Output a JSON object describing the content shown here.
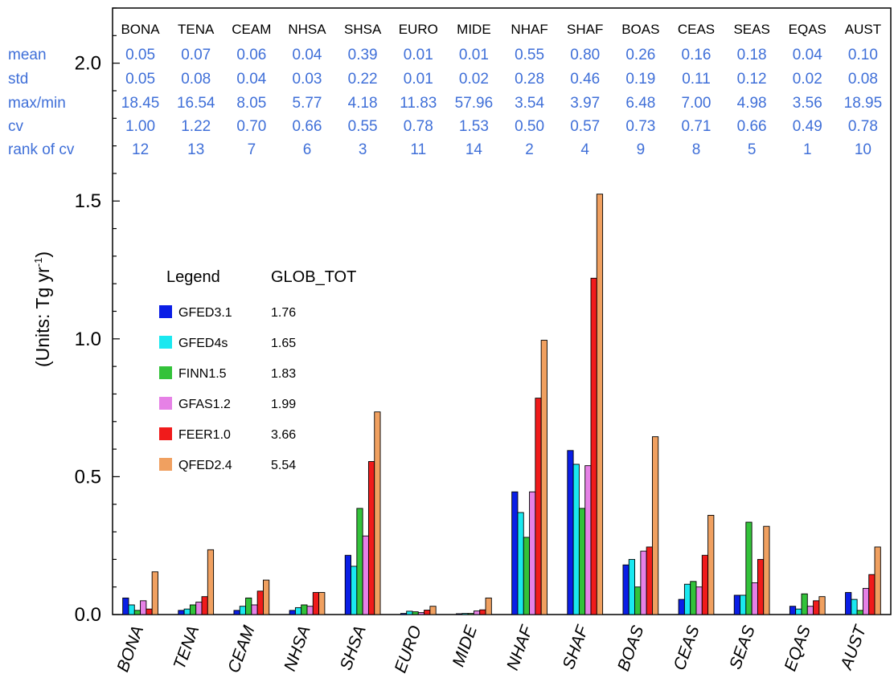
{
  "chart_data": {
    "type": "bar",
    "ylabel": "(Units: Tg yr",
    "ylabel_sup": "-1",
    "ylabel_close": ")",
    "ylim": [
      0,
      2.2
    ],
    "yticks": [
      "0.0",
      "0.5",
      "1.0",
      "1.5",
      "2.0"
    ],
    "grid": false,
    "categories": [
      "BONA",
      "TENA",
      "CEAM",
      "NHSA",
      "SHSA",
      "EURO",
      "MIDE",
      "NHAF",
      "SHAF",
      "BOAS",
      "CEAS",
      "SEAS",
      "EQAS",
      "AUST"
    ],
    "series": [
      {
        "name": "GFED3.1",
        "color": "#0a1ee6",
        "values": [
          0.06,
          0.015,
          0.015,
          0.015,
          0.215,
          0.004,
          0.003,
          0.445,
          0.595,
          0.18,
          0.055,
          0.07,
          0.03,
          0.08
        ]
      },
      {
        "name": "GFED4s",
        "color": "#1ae8f0",
        "values": [
          0.035,
          0.02,
          0.03,
          0.025,
          0.175,
          0.012,
          0.004,
          0.37,
          0.545,
          0.2,
          0.11,
          0.07,
          0.02,
          0.055
        ]
      },
      {
        "name": "FINN1.5",
        "color": "#33c23a",
        "values": [
          0.015,
          0.035,
          0.06,
          0.035,
          0.385,
          0.01,
          0.004,
          0.28,
          0.385,
          0.1,
          0.12,
          0.335,
          0.075,
          0.015
        ]
      },
      {
        "name": "GFAS1.2",
        "color": "#e681e6",
        "values": [
          0.05,
          0.045,
          0.035,
          0.03,
          0.285,
          0.007,
          0.013,
          0.445,
          0.54,
          0.23,
          0.1,
          0.115,
          0.03,
          0.095
        ]
      },
      {
        "name": "FEER1.0",
        "color": "#f01b1b",
        "values": [
          0.02,
          0.065,
          0.085,
          0.08,
          0.555,
          0.016,
          0.017,
          0.785,
          1.22,
          0.245,
          0.215,
          0.2,
          0.05,
          0.145
        ]
      },
      {
        "name": "QFED2.4",
        "color": "#f0a060",
        "values": [
          0.155,
          0.235,
          0.125,
          0.08,
          0.735,
          0.03,
          0.06,
          0.995,
          1.525,
          0.645,
          0.36,
          0.32,
          0.065,
          0.245
        ]
      }
    ],
    "legend": {
      "title": "Legend",
      "value_header": "GLOB_TOT",
      "placement": "upper-left",
      "glob_tot": [
        "1.76",
        "1.65",
        "1.83",
        "1.99",
        "3.66",
        "5.54"
      ]
    },
    "stats_table": {
      "rows": [
        {
          "label": "mean",
          "values": [
            "0.05",
            "0.07",
            "0.06",
            "0.04",
            "0.39",
            "0.01",
            "0.01",
            "0.55",
            "0.80",
            "0.26",
            "0.16",
            "0.18",
            "0.04",
            "0.10"
          ]
        },
        {
          "label": "std",
          "values": [
            "0.05",
            "0.08",
            "0.04",
            "0.03",
            "0.22",
            "0.01",
            "0.02",
            "0.28",
            "0.46",
            "0.19",
            "0.11",
            "0.12",
            "0.02",
            "0.08"
          ]
        },
        {
          "label": "max/min",
          "values": [
            "18.45",
            "16.54",
            "8.05",
            "5.77",
            "4.18",
            "11.83",
            "57.96",
            "3.54",
            "3.97",
            "6.48",
            "7.00",
            "4.98",
            "3.56",
            "18.95"
          ]
        },
        {
          "label": "cv",
          "values": [
            "1.00",
            "1.22",
            "0.70",
            "0.66",
            "0.55",
            "0.78",
            "1.53",
            "0.50",
            "0.57",
            "0.73",
            "0.71",
            "0.66",
            "0.49",
            "0.78"
          ]
        },
        {
          "label": "rank of cv",
          "values": [
            "12",
            "13",
            "7",
            "6",
            "3",
            "11",
            "14",
            "2",
            "4",
            "9",
            "8",
            "5",
            "1",
            "10"
          ]
        }
      ]
    }
  }
}
